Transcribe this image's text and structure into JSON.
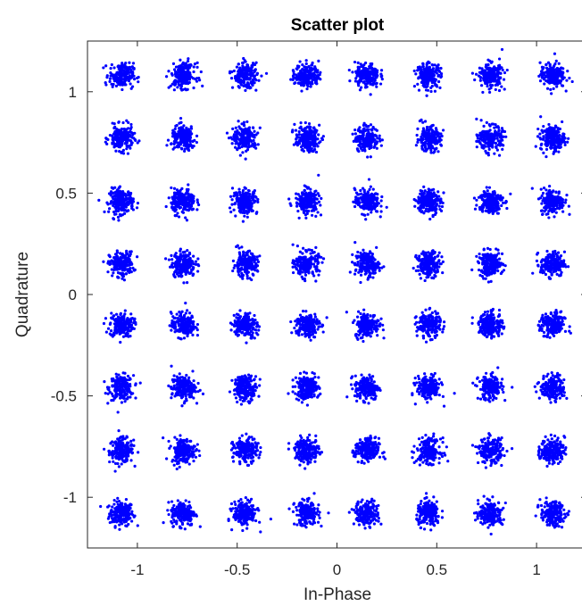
{
  "chart_data": {
    "type": "scatter",
    "title": "Scatter plot",
    "xlabel": "In-Phase",
    "ylabel": "Quadrature",
    "xlim": [
      -1.25,
      1.25
    ],
    "ylim": [
      -1.25,
      1.25
    ],
    "x_ticks": [
      -1,
      -0.5,
      0,
      0.5,
      1
    ],
    "x_tick_labels": [
      "-1",
      "-0.5",
      "0",
      "0.5",
      "1"
    ],
    "y_ticks": [
      -1,
      -0.5,
      0,
      0.5,
      1
    ],
    "y_tick_labels": [
      "-1",
      "-0.5",
      "0",
      "0.5",
      "1"
    ],
    "grid": false,
    "legend": "none",
    "marker_color": "#0000ff",
    "axis_color": "#262626",
    "constellation": {
      "levels": [
        -1.08,
        -0.77,
        -0.46,
        -0.15,
        0.15,
        0.46,
        0.77,
        1.08
      ],
      "points_per_cluster": 200,
      "noise_std": 0.03
    }
  }
}
